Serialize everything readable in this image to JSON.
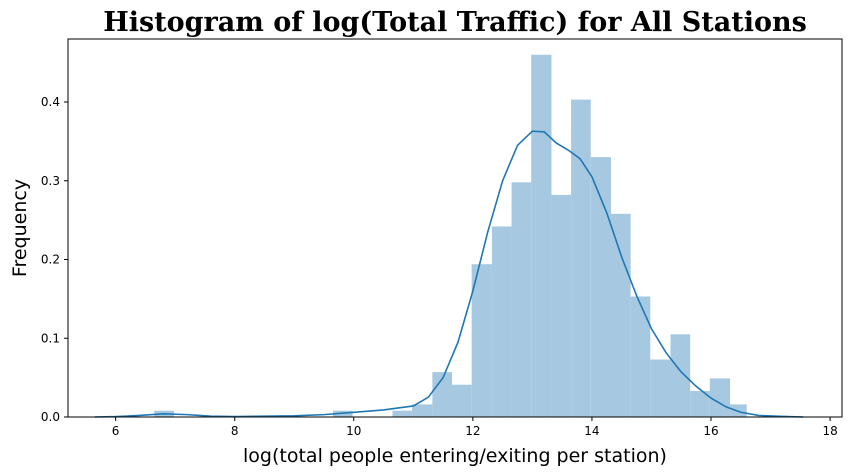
{
  "chart_data": {
    "type": "histogram",
    "title": "Histogram of log(Total Traffic) for All Stations",
    "xlabel": "log(total people entering/exiting per station)",
    "ylabel": "Frequency",
    "xlim": [
      5.2,
      18.2
    ],
    "ylim": [
      0,
      0.48
    ],
    "xticks": [
      "6",
      "8",
      "10",
      "12",
      "14",
      "16",
      "18"
    ],
    "yticks": [
      "0.0",
      "0.1",
      "0.2",
      "0.3",
      "0.4"
    ],
    "grid": false,
    "bar_color": "#a6c8e0",
    "line_color": "#1f77b4",
    "bins": [
      {
        "x0": 6.65,
        "x1": 6.98,
        "value": 0.008
      },
      {
        "x0": 9.65,
        "x1": 9.98,
        "value": 0.008
      },
      {
        "x0": 10.65,
        "x1": 10.98,
        "value": 0.008
      },
      {
        "x0": 10.98,
        "x1": 11.32,
        "value": 0.016
      },
      {
        "x0": 11.32,
        "x1": 11.65,
        "value": 0.057
      },
      {
        "x0": 11.65,
        "x1": 11.98,
        "value": 0.041
      },
      {
        "x0": 11.98,
        "x1": 12.32,
        "value": 0.194
      },
      {
        "x0": 12.32,
        "x1": 12.65,
        "value": 0.242
      },
      {
        "x0": 12.65,
        "x1": 12.98,
        "value": 0.298
      },
      {
        "x0": 12.98,
        "x1": 13.32,
        "value": 0.46
      },
      {
        "x0": 13.32,
        "x1": 13.65,
        "value": 0.282
      },
      {
        "x0": 13.65,
        "x1": 13.98,
        "value": 0.403
      },
      {
        "x0": 13.98,
        "x1": 14.32,
        "value": 0.33
      },
      {
        "x0": 14.32,
        "x1": 14.65,
        "value": 0.258
      },
      {
        "x0": 14.65,
        "x1": 14.98,
        "value": 0.153
      },
      {
        "x0": 14.98,
        "x1": 15.32,
        "value": 0.073
      },
      {
        "x0": 15.32,
        "x1": 15.65,
        "value": 0.105
      },
      {
        "x0": 15.65,
        "x1": 15.98,
        "value": 0.033
      },
      {
        "x0": 15.98,
        "x1": 16.32,
        "value": 0.049
      },
      {
        "x0": 16.32,
        "x1": 16.6,
        "value": 0.016
      }
    ],
    "kde": {
      "x": [
        5.65,
        6.0,
        6.4,
        6.8,
        7.2,
        7.6,
        8.0,
        8.5,
        9.0,
        9.5,
        10.0,
        10.5,
        11.0,
        11.25,
        11.5,
        11.75,
        12.0,
        12.25,
        12.5,
        12.75,
        13.0,
        13.2,
        13.4,
        13.6,
        13.8,
        14.0,
        14.25,
        14.5,
        14.75,
        15.0,
        15.25,
        15.5,
        15.75,
        16.0,
        16.25,
        16.5,
        16.8,
        17.1,
        17.55
      ],
      "y": [
        0.0,
        0.0005,
        0.002,
        0.004,
        0.003,
        0.001,
        0.0005,
        0.001,
        0.0015,
        0.003,
        0.006,
        0.009,
        0.014,
        0.025,
        0.05,
        0.095,
        0.16,
        0.235,
        0.3,
        0.345,
        0.363,
        0.362,
        0.348,
        0.339,
        0.328,
        0.305,
        0.259,
        0.203,
        0.154,
        0.112,
        0.081,
        0.057,
        0.039,
        0.024,
        0.013,
        0.006,
        0.002,
        0.001,
        0.0
      ]
    }
  }
}
